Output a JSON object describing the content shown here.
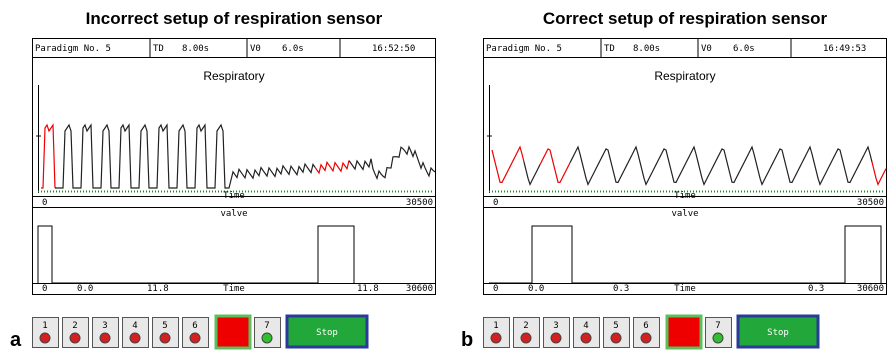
{
  "panels": [
    {
      "label": "a",
      "title": "Incorrect setup of respiration sensor",
      "header": [
        "Paradigm No. 5",
        "TD",
        "8.00s",
        "V0",
        "6.0s",
        "16:52:50"
      ],
      "plot1": {
        "title": "Respiratory",
        "x_start": "0",
        "x_label": "Time",
        "x_end": "30500"
      },
      "plot2": {
        "title": "valve",
        "labels": [
          "0",
          "0.0",
          "11.8",
          "Time",
          "11.8",
          "30600"
        ]
      },
      "buttons": [
        "1",
        "2",
        "3",
        "4",
        "5",
        "6",
        "7"
      ],
      "stop": "Stop"
    },
    {
      "label": "b",
      "title": "Correct setup of respiration sensor",
      "header": [
        "Paradigm No. 5",
        "TD",
        "8.00s",
        "V0",
        "6.0s",
        "16:49:53"
      ],
      "plot1": {
        "title": "Respiratory",
        "x_start": "0",
        "x_label": "Time",
        "x_end": "30500"
      },
      "plot2": {
        "title": "valve",
        "labels": [
          "0",
          "0.0",
          "0.3",
          "Time",
          "0.3",
          "30600"
        ]
      },
      "buttons": [
        "1",
        "2",
        "3",
        "4",
        "5",
        "6",
        "7"
      ],
      "stop": "Stop"
    }
  ]
}
